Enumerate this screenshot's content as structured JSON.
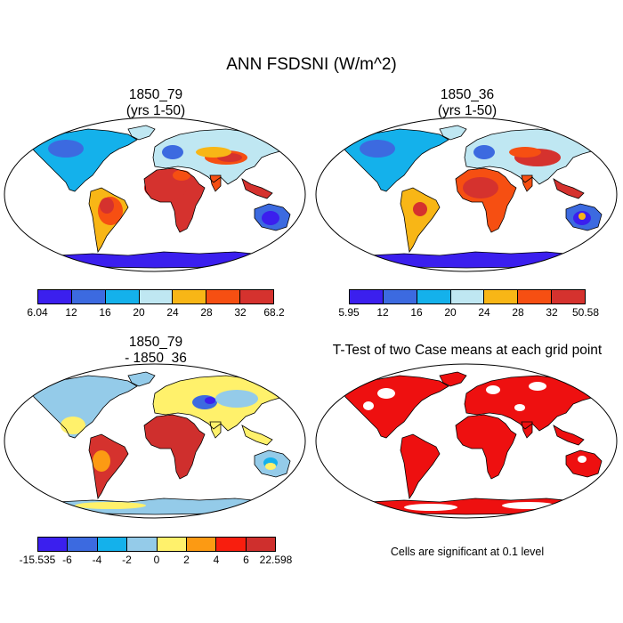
{
  "title": "ANN FSDSNI (W/m^2)",
  "panels": [
    {
      "title_line1": "1850_79",
      "title_line2": "(yrs 1-50)",
      "colorbar": {
        "colors": [
          "#3b1fee",
          "#3c6ae0",
          "#14b1eb",
          "#bfe7f2",
          "#f8b616",
          "#f64f12",
          "#d5322e"
        ],
        "labels": [
          "6.04",
          "12",
          "16",
          "20",
          "24",
          "28",
          "32",
          "68.2"
        ]
      }
    },
    {
      "title_line1": "1850_36",
      "title_line2": "(yrs 1-50)",
      "colorbar": {
        "colors": [
          "#3b1fee",
          "#3c6ae0",
          "#14b1eb",
          "#bfe7f2",
          "#f8b616",
          "#f64f12",
          "#d5322e"
        ],
        "labels": [
          "5.95",
          "12",
          "16",
          "20",
          "24",
          "28",
          "32",
          "50.58"
        ]
      }
    },
    {
      "title_line1": "1850_79",
      "title_line2": "- 1850_36",
      "colorbar": {
        "colors": [
          "#3b1fee",
          "#3c6ae0",
          "#14b1eb",
          "#94cbe9",
          "#fff16b",
          "#fc9a13",
          "#f81e0e",
          "#cf2f2d"
        ],
        "labels": [
          "-15.535",
          "-6",
          "-4",
          "-2",
          "0",
          "2",
          "4",
          "6",
          "22.598"
        ]
      }
    },
    {
      "title_line1": "T-Test of two Case means at each grid point",
      "note": "Cells are significant at 0.1 level"
    }
  ],
  "map_colors": {
    "ocean": "#ffffff",
    "coast": "#000000",
    "significant": "#ee1010"
  }
}
